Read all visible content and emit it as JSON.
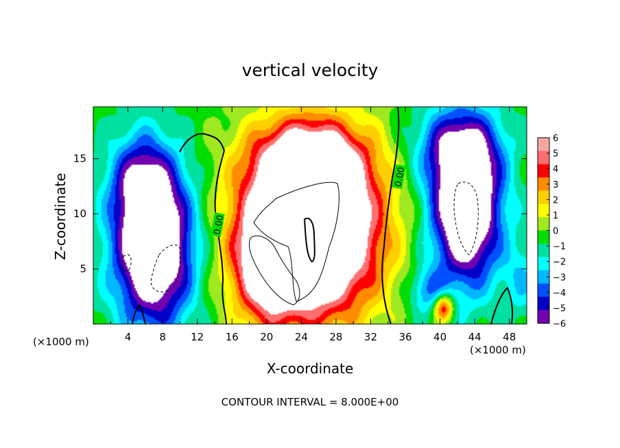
{
  "chart_data": {
    "type": "heatmap",
    "title": "vertical velocity",
    "xlabel": "X-coordinate",
    "ylabel": "Z-coordinate",
    "x_unit_note": "(×1000 m)",
    "xlim": [
      0,
      50
    ],
    "ylim": [
      0,
      19.7
    ],
    "x_ticks": [
      4,
      8,
      12,
      16,
      20,
      24,
      28,
      32,
      36,
      40,
      44,
      48
    ],
    "x_tick_labels": [
      "4",
      "8",
      "12",
      "16",
      "20",
      "24",
      "28",
      "32",
      "36",
      "40",
      "44",
      "48"
    ],
    "y_ticks": [
      5,
      10,
      15
    ],
    "y_tick_labels": [
      "5",
      "10",
      "15"
    ],
    "colorbar": {
      "range": [
        -6,
        6
      ],
      "labels": [
        "6",
        "5",
        "4",
        "3",
        "2",
        "1",
        "0",
        "−1",
        "−2",
        "−3",
        "−4",
        "−5",
        "−6"
      ],
      "colors": [
        "#f7a6a6",
        "#ff6e6e",
        "#ff0000",
        "#ff8c00",
        "#ffd000",
        "#ffff00",
        "#a0e820",
        "#00dd00",
        "#00e0a0",
        "#00ffff",
        "#00b8ff",
        "#0050ff",
        "#0000c8",
        "#7000b0"
      ]
    },
    "contour_labels": [
      "0.00",
      "0.00"
    ],
    "features": [
      {
        "name": "downdraft-left",
        "x": 7,
        "z": 7,
        "sx": 3.2,
        "sz": 5,
        "w": -10
      },
      {
        "name": "downdraft-left-upper",
        "x": 5.5,
        "z": 13,
        "sx": 2.5,
        "sz": 3,
        "w": -4
      },
      {
        "name": "updraft-center",
        "x": 25,
        "z": 8.5,
        "sx": 5.5,
        "sz": 5.5,
        "w": 13
      },
      {
        "name": "updraft-center-top",
        "x": 25,
        "z": 15,
        "sx": 4.5,
        "sz": 2.5,
        "w": 5
      },
      {
        "name": "updraft-center-left",
        "x": 20,
        "z": 5,
        "sx": 2.5,
        "sz": 3.5,
        "w": 4
      },
      {
        "name": "downdraft-right",
        "x": 43,
        "z": 10.5,
        "sx": 2.8,
        "sz": 4.8,
        "w": -10
      },
      {
        "name": "downdraft-right-upper",
        "x": 42,
        "z": 16,
        "sx": 3.5,
        "sz": 2.5,
        "w": -4
      },
      {
        "name": "updraft-right-bottom",
        "x": 40.4,
        "z": 1.5,
        "sx": 0.8,
        "sz": 0.9,
        "w": 6
      },
      {
        "name": "downdraft-bottom-right",
        "x": 38.5,
        "z": 3,
        "sx": 1.5,
        "sz": 1.5,
        "w": -3
      },
      {
        "name": "downdraft-edge-right",
        "x": 49.5,
        "z": 4,
        "sx": 1.5,
        "sz": 2.5,
        "w": -2
      }
    ]
  },
  "contour_note": "CONTOUR INTERVAL = 8.000E+00"
}
